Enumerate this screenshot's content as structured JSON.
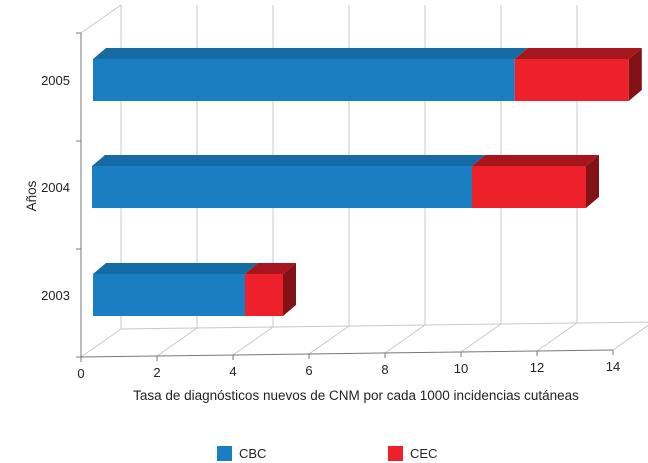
{
  "chart_data": {
    "type": "bar",
    "orientation": "horizontal",
    "stacked": true,
    "three_d": true,
    "categories": [
      "2003",
      "2004",
      "2005"
    ],
    "series": [
      {
        "name": "CBC",
        "values": [
          4.0,
          10.0,
          11.1
        ],
        "color": "#1a7ec2"
      },
      {
        "name": "CEC",
        "values": [
          1.0,
          3.0,
          3.0
        ],
        "color": "#ee2029"
      }
    ],
    "xlabel": "Tasa de diagnósticos nuevos de CNM por cada 1000 incidencias cutáneas",
    "ylabel": "Años",
    "xlim": [
      0,
      14
    ],
    "xticks": [
      "0",
      "2",
      "4",
      "6",
      "8",
      "10",
      "12",
      "14"
    ],
    "grid": true,
    "legend_position": "bottom"
  }
}
